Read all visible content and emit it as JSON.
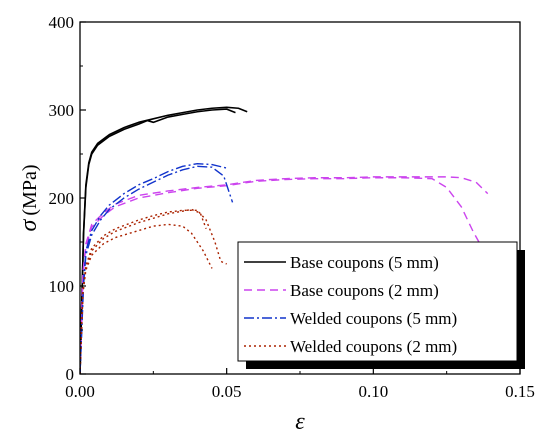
{
  "chart_data": {
    "type": "line",
    "xlabel": "ε",
    "ylabel": "σ",
    "ylabel_unit": "(MPa)",
    "xlim": [
      0,
      0.15
    ],
    "ylim": [
      0,
      400
    ],
    "xticks": [
      0.0,
      0.05,
      0.1,
      0.15
    ],
    "xtick_labels": [
      "0.00",
      "0.05",
      "0.10",
      "0.15"
    ],
    "yticks": [
      0,
      100,
      200,
      300,
      400
    ],
    "ytick_labels": [
      "0",
      "100",
      "200",
      "300",
      "400"
    ],
    "grid": false,
    "legend_position": "bottom-right",
    "series": [
      {
        "name": "Base coupons (5 mm)",
        "color": "#000000",
        "dash": "solid",
        "curves": [
          [
            [
              0,
              0
            ],
            [
              0.0012,
              160
            ],
            [
              0.002,
              215
            ],
            [
              0.003,
              240
            ],
            [
              0.004,
              252
            ],
            [
              0.006,
              262
            ],
            [
              0.01,
              272
            ],
            [
              0.015,
              280
            ],
            [
              0.02,
              286
            ],
            [
              0.025,
              290
            ],
            [
              0.03,
              294
            ],
            [
              0.035,
              297
            ],
            [
              0.04,
              300
            ],
            [
              0.045,
              302
            ],
            [
              0.05,
              303
            ],
            [
              0.054,
              302
            ],
            [
              0.057,
              298
            ]
          ],
          [
            [
              0,
              0
            ],
            [
              0.0012,
              158
            ],
            [
              0.002,
              212
            ],
            [
              0.003,
              238
            ],
            [
              0.004,
              250
            ],
            [
              0.006,
              260
            ],
            [
              0.01,
              270
            ],
            [
              0.015,
              278
            ],
            [
              0.02,
              284
            ],
            [
              0.023,
              288
            ],
            [
              0.025,
              286
            ],
            [
              0.03,
              292
            ],
            [
              0.035,
              295
            ],
            [
              0.04,
              298
            ],
            [
              0.045,
              300
            ],
            [
              0.05,
              301
            ],
            [
              0.053,
              297
            ]
          ]
        ]
      },
      {
        "name": "Base coupons (2 mm)",
        "color": "#cc44ee",
        "dash": "8,5",
        "curves": [
          [
            [
              0,
              0
            ],
            [
              0.001,
              115
            ],
            [
              0.002,
              148
            ],
            [
              0.004,
              170
            ],
            [
              0.008,
              183
            ],
            [
              0.012,
              193
            ],
            [
              0.02,
              203
            ],
            [
              0.03,
              208
            ],
            [
              0.04,
              212
            ],
            [
              0.05,
              215
            ],
            [
              0.06,
              220
            ],
            [
              0.07,
              222
            ],
            [
              0.08,
              223
            ],
            [
              0.09,
              223
            ],
            [
              0.1,
              224
            ],
            [
              0.11,
              224
            ],
            [
              0.12,
              224
            ],
            [
              0.125,
              224
            ],
            [
              0.13,
              223
            ],
            [
              0.135,
              218
            ],
            [
              0.139,
              205
            ]
          ],
          [
            [
              0,
              0
            ],
            [
              0.001,
              112
            ],
            [
              0.002,
              145
            ],
            [
              0.004,
              167
            ],
            [
              0.008,
              180
            ],
            [
              0.012,
              190
            ],
            [
              0.02,
              200
            ],
            [
              0.03,
              206
            ],
            [
              0.04,
              211
            ],
            [
              0.05,
              214
            ],
            [
              0.06,
              219
            ],
            [
              0.07,
              221
            ],
            [
              0.08,
              222
            ],
            [
              0.09,
              222
            ],
            [
              0.1,
              223
            ],
            [
              0.11,
              223
            ],
            [
              0.12,
              222
            ],
            [
              0.125,
              212
            ],
            [
              0.13,
              190
            ],
            [
              0.134,
              162
            ],
            [
              0.136,
              150
            ]
          ]
        ]
      },
      {
        "name": "Welded coupons (5 mm)",
        "color": "#1133cc",
        "dash": "10,3,2,3",
        "curves": [
          [
            [
              0,
              0
            ],
            [
              0.0012,
              105
            ],
            [
              0.002,
              140
            ],
            [
              0.004,
              163
            ],
            [
              0.007,
              180
            ],
            [
              0.01,
              192
            ],
            [
              0.015,
              205
            ],
            [
              0.02,
              215
            ],
            [
              0.025,
              222
            ],
            [
              0.03,
              230
            ],
            [
              0.035,
              236
            ],
            [
              0.04,
              239
            ],
            [
              0.045,
              238
            ],
            [
              0.05,
              234
            ]
          ],
          [
            [
              0,
              0
            ],
            [
              0.0012,
              100
            ],
            [
              0.002,
              135
            ],
            [
              0.004,
              158
            ],
            [
              0.007,
              175
            ],
            [
              0.01,
              187
            ],
            [
              0.015,
              200
            ],
            [
              0.02,
              210
            ],
            [
              0.025,
              218
            ],
            [
              0.03,
              226
            ],
            [
              0.035,
              232
            ],
            [
              0.04,
              236
            ],
            [
              0.045,
              235
            ],
            [
              0.049,
              225
            ],
            [
              0.052,
              195
            ]
          ]
        ]
      },
      {
        "name": "Welded coupons (2 mm)",
        "color": "#aa2200",
        "dash": "2,3",
        "curves": [
          [
            [
              0,
              0
            ],
            [
              0.001,
              95
            ],
            [
              0.002,
              123
            ],
            [
              0.004,
              143
            ],
            [
              0.008,
              157
            ],
            [
              0.012,
              165
            ],
            [
              0.02,
              175
            ],
            [
              0.025,
              180
            ],
            [
              0.03,
              184
            ],
            [
              0.035,
              186
            ],
            [
              0.04,
              186
            ],
            [
              0.043,
              175
            ],
            [
              0.046,
              150
            ],
            [
              0.048,
              128
            ],
            [
              0.05,
              125
            ]
          ],
          [
            [
              0,
              0
            ],
            [
              0.001,
              92
            ],
            [
              0.002,
              118
            ],
            [
              0.004,
              135
            ],
            [
              0.008,
              148
            ],
            [
              0.012,
              155
            ],
            [
              0.02,
              163
            ],
            [
              0.025,
              168
            ],
            [
              0.03,
              170
            ],
            [
              0.035,
              168
            ],
            [
              0.038,
              160
            ],
            [
              0.042,
              140
            ],
            [
              0.045,
              120
            ]
          ],
          [
            [
              0,
              0
            ],
            [
              0.001,
              93
            ],
            [
              0.002,
              120
            ],
            [
              0.004,
              140
            ],
            [
              0.008,
              154
            ],
            [
              0.012,
              162
            ],
            [
              0.02,
              172
            ],
            [
              0.025,
              177
            ],
            [
              0.03,
              182
            ],
            [
              0.035,
              185
            ],
            [
              0.038,
              187
            ],
            [
              0.041,
              183
            ],
            [
              0.043,
              165
            ]
          ]
        ]
      }
    ]
  }
}
